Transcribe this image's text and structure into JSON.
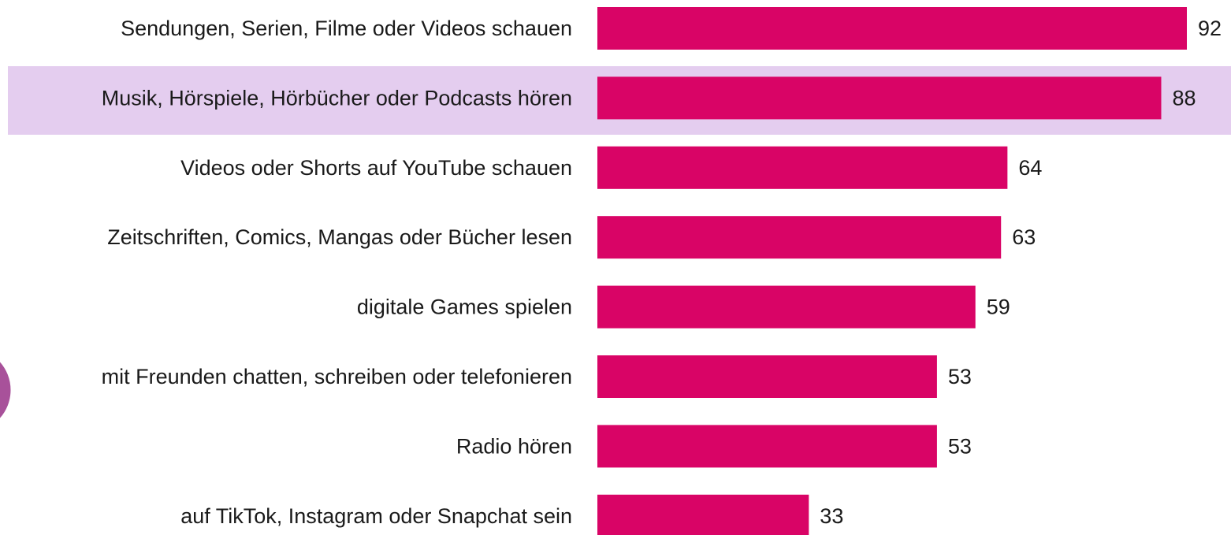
{
  "chart_data": {
    "type": "bar",
    "orientation": "horizontal",
    "color": "#d90466",
    "categories": [
      "Sendungen, Serien, Filme oder Videos schauen",
      "Musik, Hörspiele, Hörbücher oder Podcasts hören",
      "Videos oder Shorts auf YouTube schauen",
      "Zeitschriften, Comics, Mangas oder Bücher lesen",
      "digitale Games spielen",
      "mit Freunden chatten, schreiben oder telefonieren",
      "Radio hören",
      "auf TikTok, Instagram oder Snapchat sein"
    ],
    "values": [
      92,
      88,
      64,
      63,
      59,
      53,
      53,
      33
    ]
  }
}
